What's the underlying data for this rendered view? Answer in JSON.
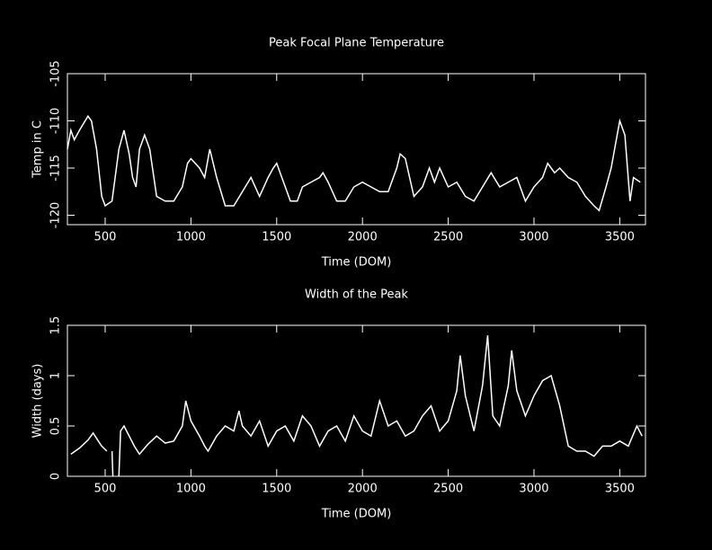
{
  "chart_data": [
    {
      "type": "line",
      "title": "Peak Focal Plane Temperature",
      "x_label": "Time (DOM)",
      "y_label": "Temp in C",
      "xlim": [
        280,
        3650
      ],
      "xticks": [
        500,
        1000,
        1500,
        2000,
        2500,
        3000,
        3500
      ],
      "ylim": [
        -121,
        -105
      ],
      "yticks": [
        -105,
        -110,
        -115,
        -120
      ],
      "color": "#ffffff",
      "x": [
        280,
        300,
        320,
        350,
        400,
        420,
        450,
        480,
        500,
        540,
        580,
        610,
        640,
        660,
        680,
        700,
        730,
        760,
        800,
        850,
        900,
        950,
        980,
        1000,
        1050,
        1080,
        1110,
        1150,
        1200,
        1250,
        1300,
        1350,
        1400,
        1450,
        1480,
        1500,
        1530,
        1580,
        1620,
        1650,
        1700,
        1750,
        1770,
        1800,
        1850,
        1900,
        1950,
        2000,
        2050,
        2100,
        2150,
        2200,
        2220,
        2250,
        2300,
        2350,
        2390,
        2420,
        2450,
        2500,
        2550,
        2600,
        2650,
        2700,
        2750,
        2800,
        2850,
        2900,
        2950,
        3000,
        3050,
        3080,
        3120,
        3150,
        3200,
        3250,
        3300,
        3350,
        3380,
        3420,
        3450,
        3480,
        3500,
        3530,
        3560,
        3580,
        3620
      ],
      "values": [
        -113,
        -111,
        -112,
        -111,
        -109.5,
        -110,
        -113,
        -118,
        -119,
        -118.5,
        -113,
        -111,
        -113.5,
        -116,
        -117,
        -113,
        -111.5,
        -113,
        -118,
        -118.5,
        -118.5,
        -117,
        -114.5,
        -114,
        -115,
        -116,
        -113,
        -116,
        -119,
        -119,
        -117.5,
        -116,
        -118,
        -116,
        -115,
        -114.5,
        -116,
        -118.5,
        -118.5,
        -117,
        -116.5,
        -116,
        -115.5,
        -116.5,
        -118.5,
        -118.5,
        -117,
        -116.5,
        -117,
        -117.5,
        -117.5,
        -115,
        -113.5,
        -114,
        -118,
        -117,
        -115,
        -116.5,
        -115,
        -117,
        -116.5,
        -118,
        -118.5,
        -117,
        -115.5,
        -117,
        -116.5,
        -116,
        -118.5,
        -117,
        -116,
        -114.5,
        -115.5,
        -115,
        -116,
        -116.5,
        -118,
        -119,
        -119.5,
        -117,
        -115,
        -112,
        -110,
        -111.5,
        -118.5,
        -116,
        -116.5
      ]
    },
    {
      "type": "line",
      "title": "Width of the Peak",
      "x_label": "Time (DOM)",
      "y_label": "Width (days)",
      "xlim": [
        280,
        3650
      ],
      "xticks": [
        500,
        1000,
        1500,
        2000,
        2500,
        3000,
        3500
      ],
      "ylim": [
        0,
        1.5
      ],
      "yticks": [
        0,
        0.5,
        1,
        1.5
      ],
      "color": "#ffffff",
      "x": [
        300,
        350,
        400,
        430,
        460,
        480,
        510,
        525,
        540,
        545,
        570,
        580,
        590,
        610,
        640,
        670,
        700,
        750,
        800,
        850,
        900,
        950,
        970,
        1000,
        1050,
        1080,
        1100,
        1150,
        1200,
        1250,
        1280,
        1300,
        1350,
        1400,
        1450,
        1500,
        1550,
        1600,
        1650,
        1700,
        1750,
        1800,
        1850,
        1900,
        1950,
        2000,
        2050,
        2100,
        2150,
        2200,
        2250,
        2300,
        2350,
        2400,
        2450,
        2500,
        2550,
        2570,
        2600,
        2650,
        2700,
        2730,
        2760,
        2800,
        2850,
        2870,
        2900,
        2950,
        3000,
        3050,
        3100,
        3150,
        3200,
        3250,
        3300,
        3350,
        3400,
        3450,
        3500,
        3550,
        3600,
        3630
      ],
      "values": [
        0.22,
        0.28,
        0.36,
        0.43,
        0.35,
        0.3,
        0.25,
        null,
        0.25,
        0,
        null,
        0,
        0.45,
        0.5,
        0.4,
        0.3,
        0.22,
        0.32,
        0.4,
        0.33,
        0.35,
        0.5,
        0.75,
        0.55,
        0.4,
        0.3,
        0.25,
        0.4,
        0.5,
        0.45,
        0.65,
        0.5,
        0.4,
        0.55,
        0.3,
        0.45,
        0.5,
        0.35,
        0.6,
        0.5,
        0.3,
        0.45,
        0.5,
        0.35,
        0.6,
        0.45,
        0.4,
        0.75,
        0.5,
        0.55,
        0.4,
        0.45,
        0.6,
        0.7,
        0.45,
        0.55,
        0.85,
        1.2,
        0.8,
        0.45,
        0.9,
        1.4,
        0.6,
        0.5,
        0.9,
        1.25,
        0.85,
        0.6,
        0.8,
        0.95,
        1.0,
        0.7,
        0.3,
        0.25,
        0.25,
        0.2,
        0.3,
        0.3,
        0.35,
        0.3,
        0.5,
        0.4
      ]
    }
  ]
}
